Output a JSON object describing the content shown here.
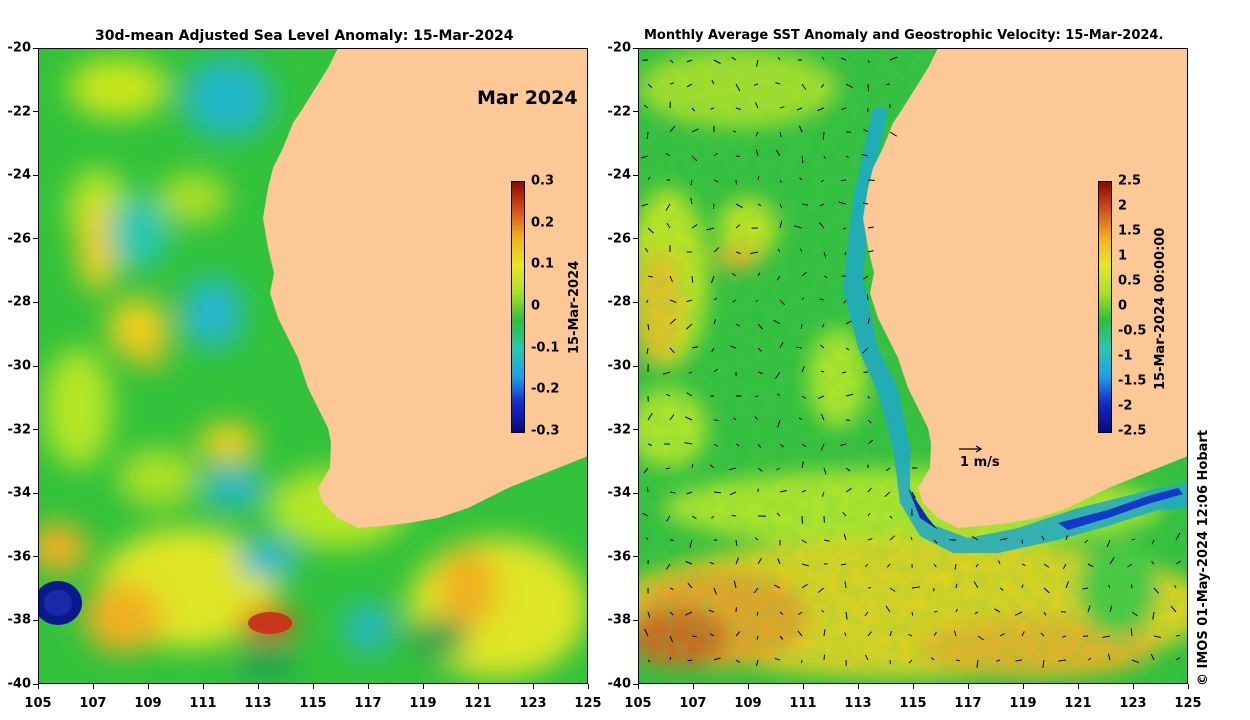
{
  "left_panel": {
    "title": "30d-mean Adjusted Sea Level Anomaly: 15-Mar-2024",
    "month_label": "Mar 2024",
    "colorbar": {
      "label": "15-Mar-2024",
      "ticks": [
        "0.3",
        "0.2",
        "0.1",
        "0",
        "-0.1",
        "-0.2",
        "-0.3"
      ],
      "range": [
        -0.3,
        0.3
      ]
    }
  },
  "right_panel": {
    "title": "Monthly Average SST Anomaly  and Geostrophic Velocity: 15-Mar-2024.",
    "reference_arrow_label": "1 m/s",
    "colorbar": {
      "label": "15-Mar-2024 00:00:00",
      "ticks": [
        "2.5",
        "2",
        "1.5",
        "1",
        "0.5",
        "0",
        "-0.5",
        "-1",
        "-1.5",
        "-2",
        "-2.5"
      ],
      "range": [
        -2.5,
        2.5
      ]
    }
  },
  "axes": {
    "x_ticks": [
      "105",
      "107",
      "109",
      "111",
      "113",
      "115",
      "117",
      "119",
      "121",
      "123",
      "125"
    ],
    "y_ticks": [
      "-20",
      "-22",
      "-24",
      "-26",
      "-28",
      "-30",
      "-32",
      "-34",
      "-36",
      "-38",
      "-40"
    ]
  },
  "credit": "© IMOS 01-May-2024 12:06 Hobart",
  "colors": {
    "land": "#fcc896",
    "ocean_base": "#2ebd3c",
    "high": "#b23000",
    "low": "#0a1a8c"
  }
}
